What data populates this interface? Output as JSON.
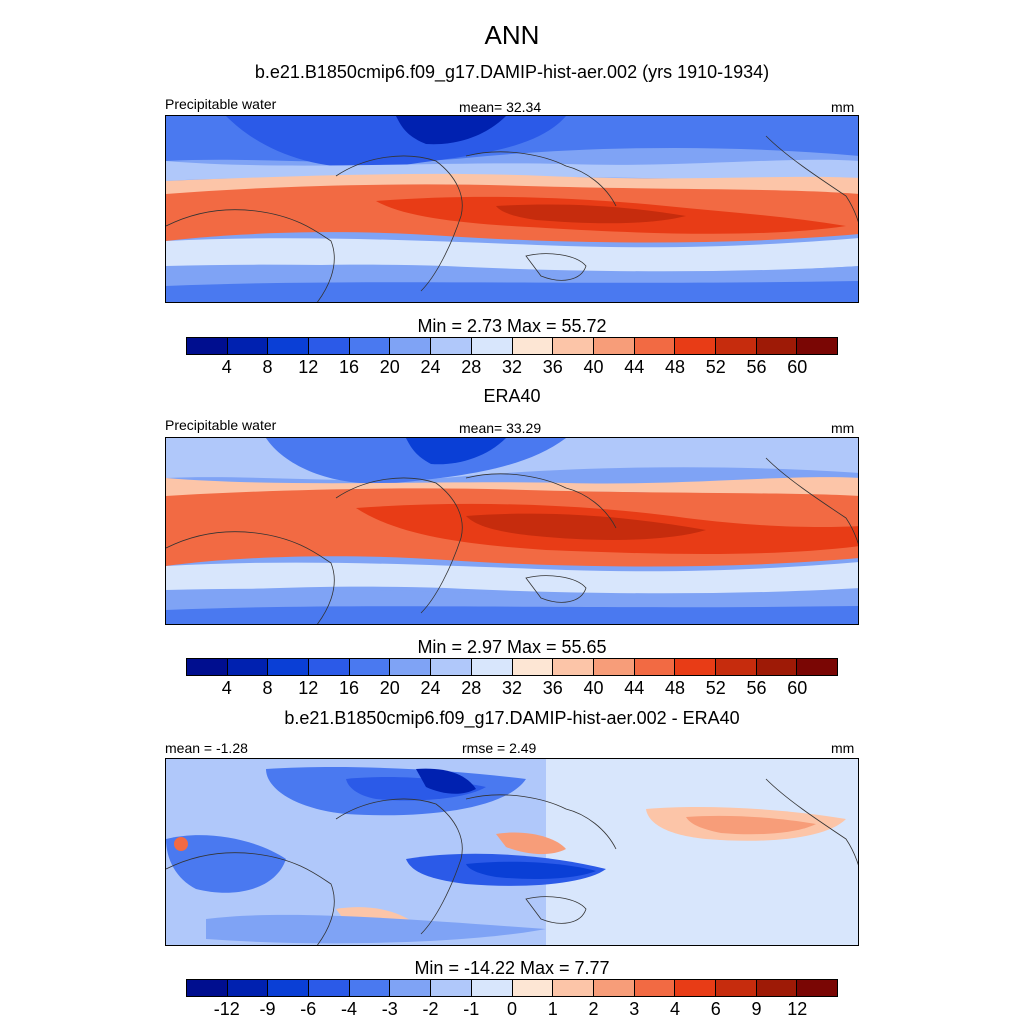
{
  "header": {
    "season": "ANN",
    "case_title": "b.e21.B1850cmip6.f09_g17.DAMIP-hist-aer.002 (yrs 1910-1934)"
  },
  "panels": [
    {
      "left_label": "Precipitable water",
      "center_label": "mean=  32.34",
      "right_label": "mm",
      "stats": "Min =   2.73 Max =  55.72",
      "ticks": [
        "4",
        "8",
        "12",
        "16",
        "20",
        "24",
        "28",
        "32",
        "36",
        "40",
        "44",
        "48",
        "52",
        "56",
        "60"
      ]
    },
    {
      "title": "ERA40",
      "left_label": "Precipitable water",
      "center_label": "mean=  33.29",
      "right_label": "mm",
      "stats": "Min =   2.97 Max =  55.65",
      "ticks": [
        "4",
        "8",
        "12",
        "16",
        "20",
        "24",
        "28",
        "32",
        "36",
        "40",
        "44",
        "48",
        "52",
        "56",
        "60"
      ]
    },
    {
      "title": "b.e21.B1850cmip6.f09_g17.DAMIP-hist-aer.002 - ERA40",
      "left_label": "mean =  -1.28",
      "center_label": "rmse =   2.49",
      "right_label": "mm",
      "stats": "Min = -14.22 Max =   7.77",
      "ticks": [
        "-12",
        "-9",
        "-6",
        "-4",
        "-3",
        "-2",
        "-1",
        "0",
        "1",
        "2",
        "3",
        "4",
        "6",
        "9",
        "12"
      ]
    }
  ],
  "colors": {
    "palette": [
      "#000e8f",
      "#0021b0",
      "#0a3fd6",
      "#2b5ae8",
      "#4a79f0",
      "#7fa3f5",
      "#b0c8fa",
      "#d8e6fc",
      "#fde6d4",
      "#fcc5a8",
      "#f79d79",
      "#f26a43",
      "#e83c16",
      "#c62c0d",
      "#9e1a06",
      "#7a0604"
    ]
  }
}
